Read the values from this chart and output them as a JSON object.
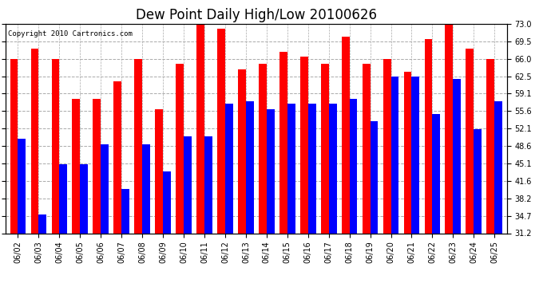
{
  "title": "Dew Point Daily High/Low 20100626",
  "copyright": "Copyright 2010 Cartronics.com",
  "dates": [
    "06/02",
    "06/03",
    "06/04",
    "06/05",
    "06/06",
    "06/07",
    "06/08",
    "06/09",
    "06/10",
    "06/11",
    "06/12",
    "06/13",
    "06/14",
    "06/15",
    "06/16",
    "06/17",
    "06/18",
    "06/19",
    "06/20",
    "06/21",
    "06/22",
    "06/23",
    "06/24",
    "06/25"
  ],
  "highs": [
    66.0,
    68.0,
    66.0,
    58.0,
    58.0,
    61.5,
    66.0,
    56.0,
    65.0,
    73.0,
    72.0,
    64.0,
    65.0,
    67.5,
    66.5,
    65.0,
    70.5,
    65.0,
    66.0,
    63.5,
    70.0,
    73.0,
    68.0,
    66.0
  ],
  "lows": [
    50.0,
    35.0,
    45.0,
    45.0,
    49.0,
    40.0,
    49.0,
    43.5,
    50.5,
    50.5,
    57.0,
    57.5,
    56.0,
    57.0,
    57.0,
    57.0,
    58.0,
    53.5,
    62.5,
    62.5,
    55.0,
    62.0,
    52.0,
    57.5
  ],
  "high_color": "#ff0000",
  "low_color": "#0000ff",
  "bg_color": "#ffffff",
  "grid_color": "#aaaaaa",
  "ylim_min": 31.2,
  "ylim_max": 73.0,
  "yticks": [
    31.2,
    34.7,
    38.2,
    41.6,
    45.1,
    48.6,
    52.1,
    55.6,
    59.1,
    62.5,
    66.0,
    69.5,
    73.0
  ],
  "title_fontsize": 12,
  "tick_fontsize": 7,
  "copyright_fontsize": 6.5
}
